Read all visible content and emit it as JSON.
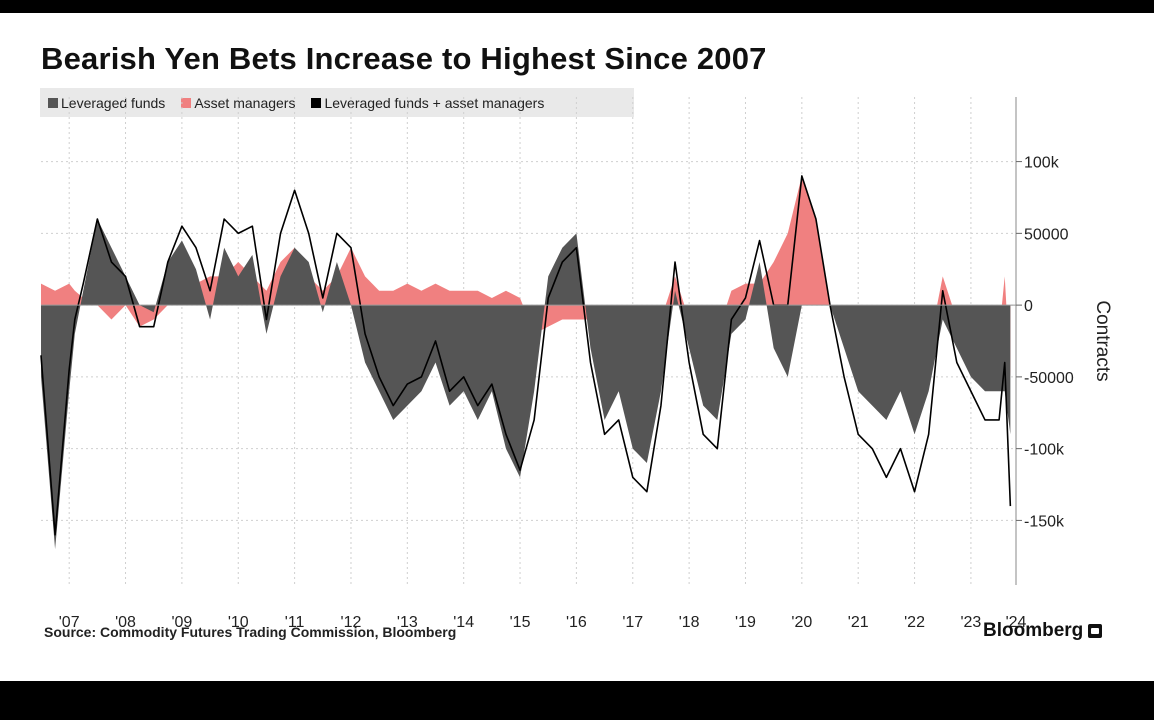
{
  "title": "Bearish Yen Bets Increase to Highest Since 2007",
  "source": "Source: Commodity Futures Trading Commission, Bloomberg",
  "brand": "Bloomberg",
  "chart_data": {
    "type": "area",
    "title": "Bearish Yen Bets Increase to Highest Since 2007",
    "xlabel": "",
    "ylabel": "Contracts",
    "ylim": [
      -195000,
      145000
    ],
    "xlim": [
      2007.0,
      2024.3
    ],
    "x_ticks": [
      2007.5,
      2008.5,
      2009.5,
      2010.5,
      2011.5,
      2012.5,
      2013.5,
      2014.5,
      2015.5,
      2016.5,
      2017.5,
      2018.5,
      2019.5,
      2020.5,
      2021.5,
      2022.5,
      2023.5,
      2024.3
    ],
    "x_tick_labels": [
      "'07",
      "'08",
      "'09",
      "'10",
      "'11",
      "'12",
      "'13",
      "'14",
      "'15",
      "'16",
      "'17",
      "'18",
      "'19",
      "'20",
      "'21",
      "'22",
      "'23",
      "'24"
    ],
    "y_ticks": [
      100000,
      50000,
      0,
      -50000,
      -100000,
      -150000
    ],
    "y_tick_labels": [
      "100k",
      "50000",
      "0",
      "-50000",
      "-100k",
      "-150k"
    ],
    "grid": true,
    "legend_position": "top-left",
    "legend": [
      "Leveraged funds",
      "Asset managers",
      "Leveraged funds + asset managers"
    ],
    "colors": {
      "leveraged": "#555555",
      "asset": "#f08080",
      "combined": "#000000",
      "grid": "#cfcfcf"
    },
    "x": [
      2007.0,
      2007.25,
      2007.5,
      2007.6,
      2007.75,
      2008.0,
      2008.25,
      2008.5,
      2008.75,
      2009.0,
      2009.25,
      2009.5,
      2009.75,
      2010.0,
      2010.25,
      2010.5,
      2010.75,
      2011.0,
      2011.25,
      2011.5,
      2011.75,
      2012.0,
      2012.25,
      2012.5,
      2012.75,
      2013.0,
      2013.25,
      2013.5,
      2013.75,
      2014.0,
      2014.25,
      2014.5,
      2014.75,
      2015.0,
      2015.25,
      2015.5,
      2015.75,
      2016.0,
      2016.25,
      2016.5,
      2016.75,
      2017.0,
      2017.25,
      2017.5,
      2017.75,
      2018.0,
      2018.25,
      2018.5,
      2018.75,
      2019.0,
      2019.25,
      2019.5,
      2019.75,
      2020.0,
      2020.25,
      2020.5,
      2020.75,
      2021.0,
      2021.25,
      2021.5,
      2021.75,
      2022.0,
      2022.25,
      2022.5,
      2022.75,
      2023.0,
      2023.25,
      2023.5,
      2023.75,
      2024.0,
      2024.1,
      2024.2
    ],
    "series": [
      {
        "name": "Leveraged funds",
        "values": [
          -50000,
          -170000,
          -60000,
          -20000,
          10000,
          60000,
          40000,
          20000,
          0,
          -5000,
          30000,
          45000,
          25000,
          -10000,
          40000,
          20000,
          35000,
          -20000,
          20000,
          40000,
          30000,
          -5000,
          30000,
          0,
          -40000,
          -60000,
          -80000,
          -70000,
          -60000,
          -40000,
          -70000,
          -60000,
          -80000,
          -60000,
          -100000,
          -120000,
          -60000,
          20000,
          40000,
          50000,
          -30000,
          -80000,
          -60000,
          -100000,
          -110000,
          -60000,
          10000,
          -30000,
          -70000,
          -80000,
          -20000,
          -10000,
          30000,
          -30000,
          -50000,
          0,
          0,
          0,
          -30000,
          -60000,
          -70000,
          -80000,
          -60000,
          -90000,
          -60000,
          -10000,
          -30000,
          -50000,
          -60000,
          -60000,
          -60000,
          -90000
        ]
      },
      {
        "name": "Asset managers",
        "values": [
          15000,
          10000,
          15000,
          10000,
          5000,
          0,
          -10000,
          0,
          -15000,
          -10000,
          0,
          10000,
          15000,
          20000,
          20000,
          30000,
          20000,
          10000,
          30000,
          40000,
          20000,
          10000,
          20000,
          40000,
          20000,
          10000,
          10000,
          15000,
          10000,
          15000,
          10000,
          10000,
          10000,
          5000,
          10000,
          5000,
          -20000,
          -15000,
          -10000,
          -10000,
          -10000,
          -10000,
          -20000,
          -20000,
          -20000,
          -10000,
          20000,
          -10000,
          -20000,
          -20000,
          10000,
          15000,
          15000,
          30000,
          50000,
          90000,
          60000,
          0,
          -20000,
          -30000,
          -30000,
          -40000,
          -40000,
          -40000,
          -30000,
          20000,
          -10000,
          -10000,
          -20000,
          -20000,
          20000,
          -50000
        ]
      },
      {
        "name": "Leveraged funds + asset managers",
        "values": [
          -35000,
          -160000,
          -45000,
          -10000,
          15000,
          60000,
          30000,
          20000,
          -15000,
          -15000,
          30000,
          55000,
          40000,
          10000,
          60000,
          50000,
          55000,
          -10000,
          50000,
          80000,
          50000,
          5000,
          50000,
          40000,
          -20000,
          -50000,
          -70000,
          -55000,
          -50000,
          -25000,
          -60000,
          -50000,
          -70000,
          -55000,
          -90000,
          -115000,
          -80000,
          5000,
          30000,
          40000,
          -40000,
          -90000,
          -80000,
          -120000,
          -130000,
          -70000,
          30000,
          -40000,
          -90000,
          -100000,
          -10000,
          5000,
          45000,
          0,
          0,
          90000,
          60000,
          0,
          -50000,
          -90000,
          -100000,
          -120000,
          -100000,
          -130000,
          -90000,
          10000,
          -40000,
          -60000,
          -80000,
          -80000,
          -40000,
          -140000
        ]
      }
    ]
  }
}
